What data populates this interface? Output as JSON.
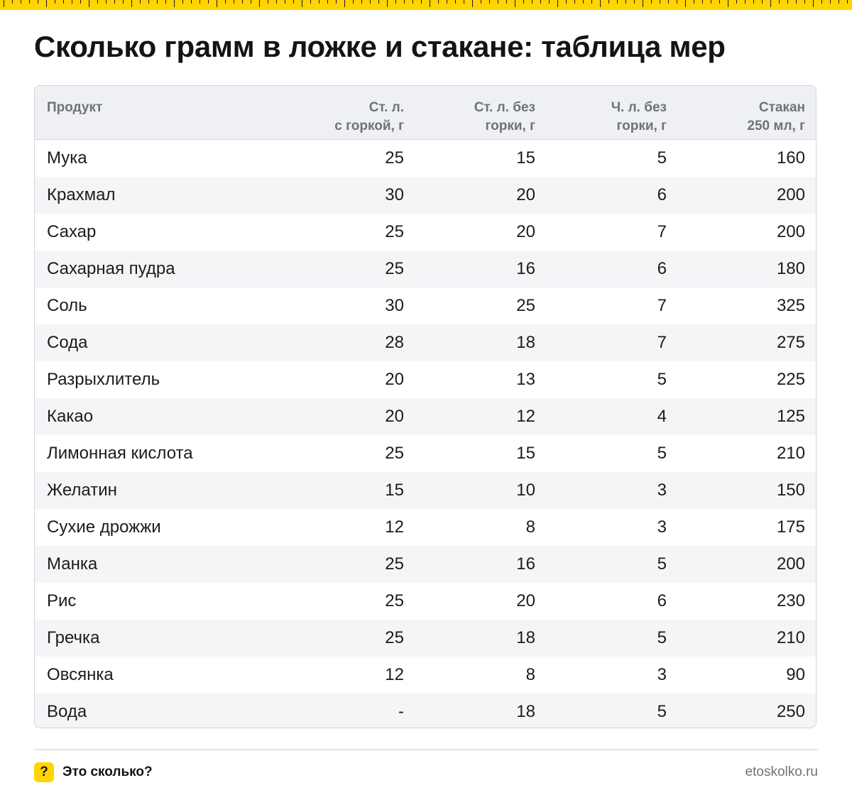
{
  "title": "Сколько грамм в ложке и стакане: таблица мер",
  "table": {
    "headers": {
      "product": "Продукт",
      "tbsp_heaped": "Ст. л.\nс горкой, г",
      "tbsp_level": "Ст. л. без\nгорки, г",
      "tsp_level": "Ч. л. без\nгорки, г",
      "glass": "Стакан\n250 мл, г"
    },
    "rows": [
      {
        "name": "Мука",
        "tbsp_heaped": "25",
        "tbsp_level": "15",
        "tsp_level": "5",
        "glass": "160"
      },
      {
        "name": "Крахмал",
        "tbsp_heaped": "30",
        "tbsp_level": "20",
        "tsp_level": "6",
        "glass": "200"
      },
      {
        "name": "Сахар",
        "tbsp_heaped": "25",
        "tbsp_level": "20",
        "tsp_level": "7",
        "glass": "200"
      },
      {
        "name": "Сахарная пудра",
        "tbsp_heaped": "25",
        "tbsp_level": "16",
        "tsp_level": "6",
        "glass": "180"
      },
      {
        "name": "Соль",
        "tbsp_heaped": "30",
        "tbsp_level": "25",
        "tsp_level": "7",
        "glass": "325"
      },
      {
        "name": "Сода",
        "tbsp_heaped": "28",
        "tbsp_level": "18",
        "tsp_level": "7",
        "glass": "275"
      },
      {
        "name": "Разрыхлитель",
        "tbsp_heaped": "20",
        "tbsp_level": "13",
        "tsp_level": "5",
        "glass": "225"
      },
      {
        "name": "Какао",
        "tbsp_heaped": "20",
        "tbsp_level": "12",
        "tsp_level": "4",
        "glass": "125"
      },
      {
        "name": "Лимонная кислота",
        "tbsp_heaped": "25",
        "tbsp_level": "15",
        "tsp_level": "5",
        "glass": "210"
      },
      {
        "name": "Желатин",
        "tbsp_heaped": "15",
        "tbsp_level": "10",
        "tsp_level": "3",
        "glass": "150"
      },
      {
        "name": "Сухие дрожжи",
        "tbsp_heaped": "12",
        "tbsp_level": "8",
        "tsp_level": "3",
        "glass": "175"
      },
      {
        "name": "Манка",
        "tbsp_heaped": "25",
        "tbsp_level": "16",
        "tsp_level": "5",
        "glass": "200"
      },
      {
        "name": "Рис",
        "tbsp_heaped": "25",
        "tbsp_level": "20",
        "tsp_level": "6",
        "glass": "230"
      },
      {
        "name": "Гречка",
        "tbsp_heaped": "25",
        "tbsp_level": "18",
        "tsp_level": "5",
        "glass": "210"
      },
      {
        "name": "Овсянка",
        "tbsp_heaped": "12",
        "tbsp_level": "8",
        "tsp_level": "3",
        "glass": "90"
      },
      {
        "name": "Вода",
        "tbsp_heaped": "-",
        "tbsp_level": "18",
        "tsp_level": "5",
        "glass": "250"
      }
    ]
  },
  "footer": {
    "icon_symbol": "?",
    "brand": "Это сколько?",
    "url": "etoskolko.ru"
  },
  "colors": {
    "accent": "#ffd400",
    "header_bg": "#eef0f3",
    "stripe_bg": "#f4f5f7",
    "muted_text": "#6e737b"
  }
}
